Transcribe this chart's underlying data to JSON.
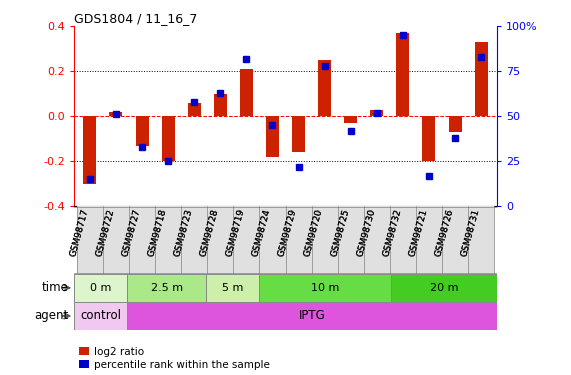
{
  "title": "GDS1804 / 11_16_7",
  "samples": [
    "GSM98717",
    "GSM98722",
    "GSM98727",
    "GSM98718",
    "GSM98723",
    "GSM98728",
    "GSM98719",
    "GSM98724",
    "GSM98729",
    "GSM98720",
    "GSM98725",
    "GSM98730",
    "GSM98732",
    "GSM98721",
    "GSM98726",
    "GSM98731"
  ],
  "log2_ratio": [
    -0.3,
    0.02,
    -0.13,
    -0.2,
    0.06,
    0.1,
    0.21,
    -0.18,
    -0.16,
    0.25,
    -0.03,
    0.03,
    0.37,
    -0.2,
    -0.07,
    0.33
  ],
  "pct_rank": [
    15,
    51,
    33,
    25,
    58,
    63,
    82,
    45,
    22,
    78,
    42,
    52,
    95,
    17,
    38,
    83
  ],
  "time_groups": [
    {
      "label": "0 m",
      "start": 0,
      "end": 2,
      "color": "#ddf5cc"
    },
    {
      "label": "2.5 m",
      "start": 2,
      "end": 5,
      "color": "#aae888"
    },
    {
      "label": "5 m",
      "start": 5,
      "end": 7,
      "color": "#ccf0aa"
    },
    {
      "label": "10 m",
      "start": 7,
      "end": 12,
      "color": "#66dd44"
    },
    {
      "label": "20 m",
      "start": 12,
      "end": 16,
      "color": "#44cc22"
    }
  ],
  "agent_groups": [
    {
      "label": "control",
      "start": 0,
      "end": 2,
      "color": "#f0c8f0"
    },
    {
      "label": "IPTG",
      "start": 2,
      "end": 16,
      "color": "#dd55dd"
    }
  ],
  "bar_color": "#cc2200",
  "dot_color": "#0000cc",
  "ylim_left": [
    -0.4,
    0.4
  ],
  "ylim_right": [
    0,
    100
  ],
  "yticks_left": [
    -0.4,
    -0.2,
    0.0,
    0.2,
    0.4
  ],
  "yticks_right": [
    0,
    25,
    50,
    75,
    100
  ],
  "ytick_labels_right": [
    "0",
    "25",
    "50",
    "75",
    "100%"
  ],
  "legend_red": "log2 ratio",
  "legend_blue": "percentile rank within the sample"
}
